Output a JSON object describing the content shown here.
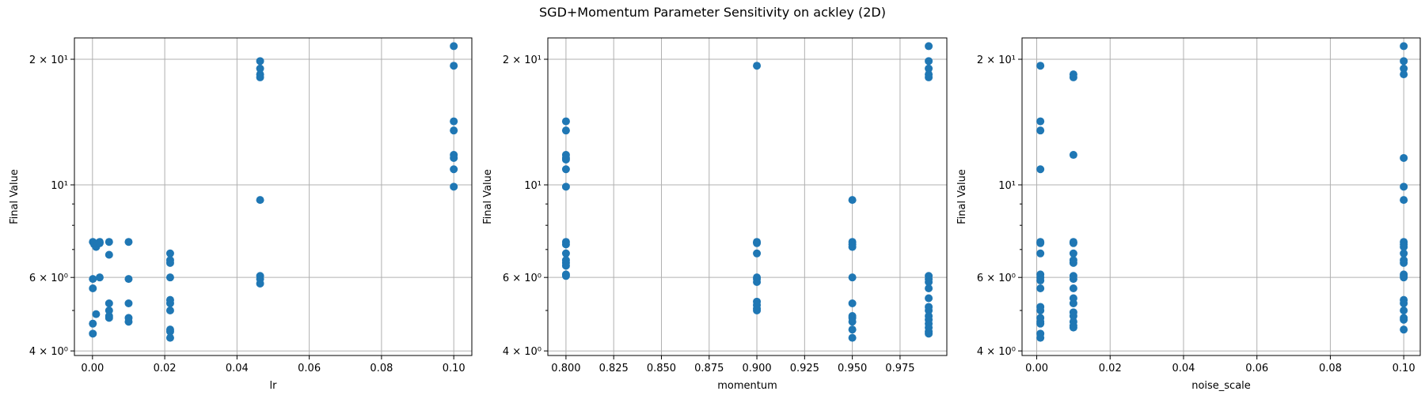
{
  "figure": {
    "title": "SGD+Momentum Parameter Sensitivity on ackley (2D)"
  },
  "style": {
    "marker_color": "#1f77b4",
    "grid_color": "#b0b0b0"
  },
  "chart_data": [
    {
      "type": "scatter",
      "xlabel": "lr",
      "ylabel": "Final Value",
      "xlim": [
        -0.005,
        0.105
      ],
      "ylim": [
        3.9,
        22.5
      ],
      "yscale": "log",
      "grid": true,
      "xticks": [
        0.0,
        0.02,
        0.04,
        0.06,
        0.08,
        0.1
      ],
      "xtick_labels": [
        "0.00",
        "0.02",
        "0.04",
        "0.06",
        "0.08",
        "0.10"
      ],
      "yticks": [
        4,
        6,
        10,
        20
      ],
      "ytick_labels": [
        "4 × 10⁰",
        "6 × 10⁰",
        "10¹",
        "2 × 10¹"
      ],
      "points": [
        [
          0.0001,
          7.3
        ],
        [
          0.0001,
          5.95
        ],
        [
          0.0001,
          5.65
        ],
        [
          0.0001,
          4.65
        ],
        [
          0.0001,
          4.4
        ],
        [
          0.0005,
          7.25
        ],
        [
          0.0005,
          7.2
        ],
        [
          0.001,
          7.1
        ],
        [
          0.001,
          4.9
        ],
        [
          0.002,
          7.3
        ],
        [
          0.002,
          7.25
        ],
        [
          0.002,
          6.0
        ],
        [
          0.0046,
          7.3
        ],
        [
          0.0046,
          6.8
        ],
        [
          0.0046,
          5.2
        ],
        [
          0.0046,
          5.0
        ],
        [
          0.0046,
          4.85
        ],
        [
          0.0046,
          4.8
        ],
        [
          0.01,
          7.3
        ],
        [
          0.01,
          5.95
        ],
        [
          0.01,
          5.2
        ],
        [
          0.01,
          4.8
        ],
        [
          0.01,
          4.7
        ],
        [
          0.0215,
          6.85
        ],
        [
          0.0215,
          6.6
        ],
        [
          0.0215,
          6.5
        ],
        [
          0.0215,
          6.0
        ],
        [
          0.0215,
          5.3
        ],
        [
          0.0215,
          5.2
        ],
        [
          0.0215,
          5.0
        ],
        [
          0.0215,
          4.5
        ],
        [
          0.0215,
          4.45
        ],
        [
          0.0215,
          4.3
        ],
        [
          0.0464,
          19.8
        ],
        [
          0.0464,
          19.0
        ],
        [
          0.0464,
          18.4
        ],
        [
          0.0464,
          18.1
        ],
        [
          0.0464,
          9.2
        ],
        [
          0.0464,
          6.05
        ],
        [
          0.0464,
          5.95
        ],
        [
          0.0464,
          5.8
        ],
        [
          0.1,
          21.5
        ],
        [
          0.1,
          19.3
        ],
        [
          0.1,
          14.2
        ],
        [
          0.1,
          13.5
        ],
        [
          0.1,
          11.8
        ],
        [
          0.1,
          11.6
        ],
        [
          0.1,
          10.9
        ],
        [
          0.1,
          9.9
        ]
      ]
    },
    {
      "type": "scatter",
      "xlabel": "momentum",
      "ylabel": "Final Value",
      "xlim": [
        0.7905,
        0.9995
      ],
      "ylim": [
        3.9,
        22.5
      ],
      "yscale": "log",
      "grid": true,
      "xticks": [
        0.8,
        0.825,
        0.85,
        0.875,
        0.9,
        0.925,
        0.95,
        0.975
      ],
      "xtick_labels": [
        "0.800",
        "0.825",
        "0.850",
        "0.875",
        "0.900",
        "0.925",
        "0.950",
        "0.975"
      ],
      "yticks": [
        4,
        6,
        10,
        20
      ],
      "ytick_labels": [
        "4 × 10⁰",
        "6 × 10⁰",
        "10¹",
        "2 × 10¹"
      ],
      "points": [
        [
          0.8,
          14.2
        ],
        [
          0.8,
          13.5
        ],
        [
          0.8,
          11.8
        ],
        [
          0.8,
          11.6
        ],
        [
          0.8,
          11.5
        ],
        [
          0.8,
          10.9
        ],
        [
          0.8,
          9.9
        ],
        [
          0.8,
          7.3
        ],
        [
          0.8,
          7.2
        ],
        [
          0.8,
          6.85
        ],
        [
          0.8,
          6.6
        ],
        [
          0.8,
          6.5
        ],
        [
          0.8,
          6.4
        ],
        [
          0.8,
          6.1
        ],
        [
          0.8,
          6.05
        ],
        [
          0.9,
          19.3
        ],
        [
          0.9,
          7.3
        ],
        [
          0.9,
          7.25
        ],
        [
          0.9,
          6.85
        ],
        [
          0.9,
          6.0
        ],
        [
          0.9,
          5.95
        ],
        [
          0.9,
          5.85
        ],
        [
          0.9,
          5.25
        ],
        [
          0.9,
          5.15
        ],
        [
          0.9,
          5.05
        ],
        [
          0.9,
          5.0
        ],
        [
          0.95,
          9.2
        ],
        [
          0.95,
          7.3
        ],
        [
          0.95,
          7.2
        ],
        [
          0.95,
          7.1
        ],
        [
          0.95,
          6.0
        ],
        [
          0.95,
          5.2
        ],
        [
          0.95,
          4.85
        ],
        [
          0.95,
          4.8
        ],
        [
          0.95,
          4.7
        ],
        [
          0.95,
          4.5
        ],
        [
          0.95,
          4.3
        ],
        [
          0.99,
          21.5
        ],
        [
          0.99,
          19.8
        ],
        [
          0.99,
          19.0
        ],
        [
          0.99,
          18.4
        ],
        [
          0.99,
          18.1
        ],
        [
          0.99,
          6.05
        ],
        [
          0.99,
          5.95
        ],
        [
          0.99,
          5.85
        ],
        [
          0.99,
          5.65
        ],
        [
          0.99,
          5.35
        ],
        [
          0.99,
          5.1
        ],
        [
          0.99,
          5.0
        ],
        [
          0.99,
          4.85
        ],
        [
          0.99,
          4.75
        ],
        [
          0.99,
          4.65
        ],
        [
          0.99,
          4.55
        ],
        [
          0.99,
          4.45
        ],
        [
          0.99,
          4.4
        ]
      ]
    },
    {
      "type": "scatter",
      "xlabel": "noise_scale",
      "ylabel": "Final Value",
      "xlim": [
        -0.004,
        0.1045
      ],
      "ylim": [
        3.9,
        22.5
      ],
      "yscale": "log",
      "grid": true,
      "xticks": [
        0.0,
        0.02,
        0.04,
        0.06,
        0.08,
        0.1
      ],
      "xtick_labels": [
        "0.00",
        "0.02",
        "0.04",
        "0.06",
        "0.08",
        "0.10"
      ],
      "yticks": [
        4,
        6,
        10,
        20
      ],
      "ytick_labels": [
        "4 × 10⁰",
        "6 × 10⁰",
        "10¹",
        "2 × 10¹"
      ],
      "points": [
        [
          0.001,
          19.3
        ],
        [
          0.001,
          14.2
        ],
        [
          0.001,
          13.5
        ],
        [
          0.001,
          10.9
        ],
        [
          0.001,
          7.3
        ],
        [
          0.001,
          7.25
        ],
        [
          0.001,
          6.85
        ],
        [
          0.001,
          6.1
        ],
        [
          0.001,
          6.0
        ],
        [
          0.001,
          5.9
        ],
        [
          0.001,
          5.65
        ],
        [
          0.001,
          5.1
        ],
        [
          0.001,
          5.0
        ],
        [
          0.001,
          4.8
        ],
        [
          0.001,
          4.7
        ],
        [
          0.001,
          4.65
        ],
        [
          0.001,
          4.4
        ],
        [
          0.001,
          4.3
        ],
        [
          0.01,
          18.4
        ],
        [
          0.01,
          18.1
        ],
        [
          0.01,
          11.8
        ],
        [
          0.01,
          7.3
        ],
        [
          0.01,
          7.25
        ],
        [
          0.01,
          6.85
        ],
        [
          0.01,
          6.6
        ],
        [
          0.01,
          6.5
        ],
        [
          0.01,
          6.05
        ],
        [
          0.01,
          5.95
        ],
        [
          0.01,
          5.65
        ],
        [
          0.01,
          5.35
        ],
        [
          0.01,
          5.2
        ],
        [
          0.01,
          4.95
        ],
        [
          0.01,
          4.85
        ],
        [
          0.01,
          4.7
        ],
        [
          0.01,
          4.6
        ],
        [
          0.01,
          4.55
        ],
        [
          0.1,
          21.5
        ],
        [
          0.1,
          19.8
        ],
        [
          0.1,
          19.0
        ],
        [
          0.1,
          18.4
        ],
        [
          0.1,
          11.6
        ],
        [
          0.1,
          9.9
        ],
        [
          0.1,
          9.2
        ],
        [
          0.1,
          7.3
        ],
        [
          0.1,
          7.2
        ],
        [
          0.1,
          7.1
        ],
        [
          0.1,
          6.85
        ],
        [
          0.1,
          6.6
        ],
        [
          0.1,
          6.5
        ],
        [
          0.1,
          6.1
        ],
        [
          0.1,
          6.05
        ],
        [
          0.1,
          6.0
        ],
        [
          0.1,
          5.3
        ],
        [
          0.1,
          5.2
        ],
        [
          0.1,
          5.0
        ],
        [
          0.1,
          4.8
        ],
        [
          0.1,
          4.75
        ],
        [
          0.1,
          4.5
        ]
      ]
    }
  ]
}
